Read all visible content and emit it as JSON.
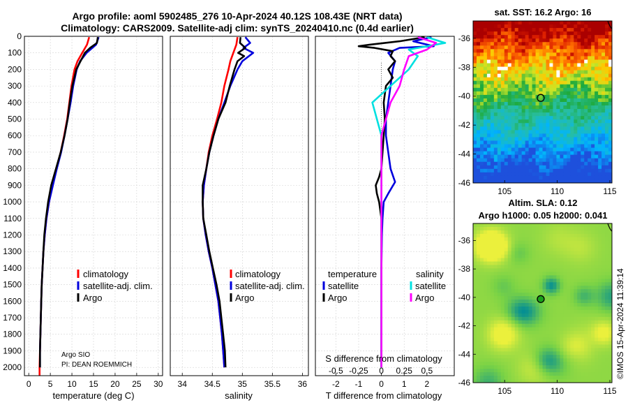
{
  "chart_data": [
    {
      "type": "line",
      "id": "temperature",
      "title_line1": "Argo profile: aoml 5902485_276 10-Apr-2024 40.12S 108.43E (NRT data)",
      "title_line2": "Climatology: CARS2009. Satellite-adj clim: synTS_20240410.nc (0.4d earlier)",
      "xlabel": "temperature (deg C)",
      "ylabel": "",
      "xlim": [
        -1,
        31
      ],
      "ylim": [
        2050,
        0
      ],
      "xticks": [
        0,
        5,
        10,
        15,
        20,
        25,
        30
      ],
      "yticks": [
        0,
        100,
        200,
        300,
        400,
        500,
        600,
        700,
        800,
        900,
        1000,
        1100,
        1200,
        1300,
        1400,
        1500,
        1600,
        1700,
        1800,
        1900,
        2000
      ],
      "legend": [
        "climatology",
        "satellite-adj. clim.",
        "Argo"
      ],
      "note_line1": "Argo SIO",
      "note_line2": "PI: DEAN ROEMMICH",
      "series": [
        {
          "name": "climatology",
          "color": "#ff0000",
          "depth": [
            5,
            50,
            100,
            150,
            200,
            300,
            400,
            500,
            600,
            700,
            800,
            900,
            1000,
            1100,
            1200,
            1300,
            1400,
            1500,
            1600,
            1700,
            1800,
            1900,
            2000,
            2050
          ],
          "values": [
            14.0,
            13.5,
            12.4,
            11.3,
            10.6,
            9.9,
            9.4,
            8.9,
            8.2,
            7.4,
            6.4,
            5.5,
            4.7,
            4.1,
            3.7,
            3.4,
            3.2,
            3.0,
            2.9,
            2.8,
            2.7,
            2.6,
            2.5,
            2.5
          ]
        },
        {
          "name": "satellite-adj. clim.",
          "color": "#0000dd",
          "depth": [
            5,
            50,
            100,
            150,
            200,
            300,
            400,
            500,
            600,
            700,
            800,
            900,
            1000,
            1100,
            1200,
            1300,
            1400,
            1500,
            1600,
            1700,
            1800,
            1900,
            2000
          ],
          "values": [
            16.2,
            15.6,
            13.4,
            11.9,
            11.1,
            10.3,
            9.7,
            9.0,
            8.3,
            7.5,
            6.5,
            5.6,
            4.7,
            4.1,
            3.7,
            3.4,
            3.2,
            3.0,
            2.9,
            2.8,
            2.7,
            2.6,
            2.6
          ]
        },
        {
          "name": "Argo",
          "color": "#000000",
          "depth": [
            5,
            40,
            70,
            100,
            150,
            200,
            300,
            400,
            500,
            600,
            700,
            800,
            900,
            1000,
            1100,
            1200,
            1300,
            1400,
            1500,
            1600,
            1700,
            1800,
            1900,
            2000
          ],
          "values": [
            16.0,
            15.8,
            14.2,
            13.0,
            12.0,
            11.0,
            10.1,
            9.5,
            9.0,
            8.3,
            7.4,
            6.3,
            5.2,
            4.5,
            4.0,
            3.6,
            3.4,
            3.2,
            3.0,
            2.9,
            2.8,
            2.7,
            2.6,
            2.6
          ]
        }
      ]
    },
    {
      "type": "line",
      "id": "salinity",
      "xlabel": "salinity",
      "xlim": [
        33.8,
        36.1
      ],
      "ylim": [
        2050,
        0
      ],
      "xticks": [
        34,
        34.5,
        35,
        35.5,
        36
      ],
      "legend": [
        "climatology",
        "satellite-adj. clim.",
        "Argo"
      ],
      "series": [
        {
          "name": "climatology",
          "color": "#ff0000",
          "depth": [
            5,
            50,
            100,
            150,
            200,
            300,
            400,
            500,
            600,
            700,
            800,
            900,
            1000,
            1100,
            1200,
            1300,
            1400,
            1500,
            1600,
            1700,
            1800,
            1900,
            2000
          ],
          "values": [
            34.92,
            34.9,
            34.85,
            34.8,
            34.77,
            34.7,
            34.65,
            34.58,
            34.5,
            34.44,
            34.4,
            34.36,
            34.34,
            34.35,
            34.39,
            34.44,
            34.5,
            34.55,
            34.6,
            34.63,
            34.66,
            34.68,
            34.7
          ]
        },
        {
          "name": "satellite-adj. clim.",
          "color": "#0000dd",
          "depth": [
            5,
            40,
            70,
            100,
            150,
            200,
            300,
            400,
            500,
            600,
            700,
            800,
            900,
            1000,
            1100,
            1200,
            1300,
            1400,
            1500,
            1600,
            1700,
            1800,
            1900,
            2000
          ],
          "values": [
            35.05,
            35.13,
            35.02,
            35.18,
            35.0,
            34.92,
            34.8,
            34.7,
            34.6,
            34.52,
            34.45,
            34.4,
            34.36,
            34.34,
            34.35,
            34.39,
            34.44,
            34.5,
            34.55,
            34.6,
            34.63,
            34.66,
            34.68,
            34.7
          ]
        },
        {
          "name": "Argo",
          "color": "#000000",
          "depth": [
            5,
            40,
            70,
            100,
            120,
            150,
            200,
            300,
            400,
            500,
            600,
            700,
            800,
            900,
            1000,
            1100,
            1200,
            1300,
            1400,
            1500,
            1600,
            1700,
            1800,
            1900,
            2000
          ],
          "values": [
            34.97,
            34.96,
            35.05,
            34.93,
            35.03,
            34.92,
            34.87,
            34.79,
            34.72,
            34.6,
            34.52,
            34.45,
            34.4,
            34.34,
            34.34,
            34.35,
            34.4,
            34.45,
            34.51,
            34.57,
            34.62,
            34.65,
            34.68,
            34.71,
            34.72
          ]
        }
      ]
    },
    {
      "type": "line",
      "id": "difference",
      "xlabel": "T difference from climatology",
      "xlabel_top": "S difference from climatology",
      "xlim": [
        -2.9,
        3.2
      ],
      "ylim": [
        2050,
        0
      ],
      "xticks_T": [
        -2,
        -1,
        0,
        1,
        2
      ],
      "xticks_S": [
        -0.5,
        -0.25,
        0,
        0.25,
        0.5
      ],
      "legend_heading_T": "temperature",
      "legend_heading_S": "salinity",
      "legend_T": [
        "satellite",
        "Argo"
      ],
      "legend_S": [
        "satellite",
        "Argo"
      ],
      "series": [
        {
          "name": "T satellite",
          "color": "#0000dd",
          "depth": [
            5,
            30,
            60,
            70,
            100,
            150,
            200,
            300,
            400,
            500,
            600,
            700,
            800,
            880,
            950,
            1000,
            1100,
            1200,
            1400,
            1600,
            1800,
            2000
          ],
          "values": [
            2.2,
            1.4,
            2.3,
            0.8,
            0.3,
            0.6,
            0.5,
            0.4,
            0.3,
            0.2,
            0.2,
            0.3,
            0.4,
            0.6,
            0.3,
            0.1,
            0.05,
            0.02,
            0.0,
            0.0,
            0.0,
            0.0
          ]
        },
        {
          "name": "T Argo",
          "color": "#000000",
          "depth": [
            5,
            30,
            50,
            60,
            70,
            90,
            120,
            150,
            200,
            250,
            300,
            400,
            500,
            600,
            700,
            800,
            850,
            900,
            950,
            1000,
            1100,
            1200,
            1400,
            1600,
            1800,
            2000
          ],
          "values": [
            1.9,
            0.8,
            -0.5,
            -1.0,
            -0.3,
            0.5,
            0.4,
            0.6,
            0.3,
            0.5,
            0.2,
            0.1,
            0.15,
            0.1,
            0.05,
            0.0,
            -0.1,
            -0.25,
            -0.2,
            -0.1,
            0.0,
            0.0,
            0.0,
            0.0,
            0.0,
            0.0
          ]
        },
        {
          "name": "S satellite",
          "color": "#00e0e0",
          "depth": [
            5,
            40,
            80,
            120,
            200,
            300,
            400,
            500,
            600,
            700,
            800,
            900,
            1000,
            1200,
            1400,
            1600,
            1800,
            2000
          ],
          "values": [
            0.5,
            0.7,
            0.3,
            0.4,
            0.3,
            0.1,
            -0.1,
            -0.05,
            0.0,
            0.0,
            0.0,
            0.0,
            0.0,
            0.0,
            0.0,
            0.0,
            0.0,
            0.0
          ]
        },
        {
          "name": "S Argo",
          "color": "#ff00ff",
          "depth": [
            5,
            40,
            80,
            120,
            200,
            300,
            400,
            500,
            600,
            700,
            800,
            900,
            1000,
            1200,
            1400,
            1600,
            1800,
            2000
          ],
          "values": [
            0.4,
            0.6,
            0.5,
            0.3,
            0.25,
            0.2,
            0.1,
            0.05,
            0.0,
            0.0,
            0.0,
            0.0,
            0.0,
            0.0,
            0.0,
            0.0,
            0.0,
            0.0
          ]
        }
      ]
    },
    {
      "type": "heatmap",
      "id": "sst-map",
      "title": "sat. SST: 16.2 Argo: 16",
      "xlim": [
        102,
        115.2
      ],
      "ylim": [
        -46,
        -34.8
      ],
      "xticks": [
        105,
        110,
        115
      ],
      "yticks": [
        -36,
        -38,
        -40,
        -42,
        -44,
        -46
      ],
      "marker": {
        "lon": 108.43,
        "lat": -40.12
      }
    },
    {
      "type": "heatmap",
      "id": "sla-map",
      "title_line1": "Altim. SLA: 0.12",
      "title_line2": "Argo h1000: 0.05 h2000: 0.041",
      "xlim": [
        102,
        115.2
      ],
      "ylim": [
        -46,
        -34.8
      ],
      "xticks": [
        105,
        110,
        115
      ],
      "yticks": [
        -36,
        -38,
        -40,
        -42,
        -44,
        -46
      ],
      "marker": {
        "lon": 108.43,
        "lat": -40.12
      }
    }
  ],
  "footer": {
    "copyright": "©IMOS 15-Apr-2024 11:39:14"
  },
  "colors": {
    "grid": "#d3d3d3",
    "sst_marker_edge": "#000000",
    "sla_marker_fill": "#1aa01a"
  }
}
